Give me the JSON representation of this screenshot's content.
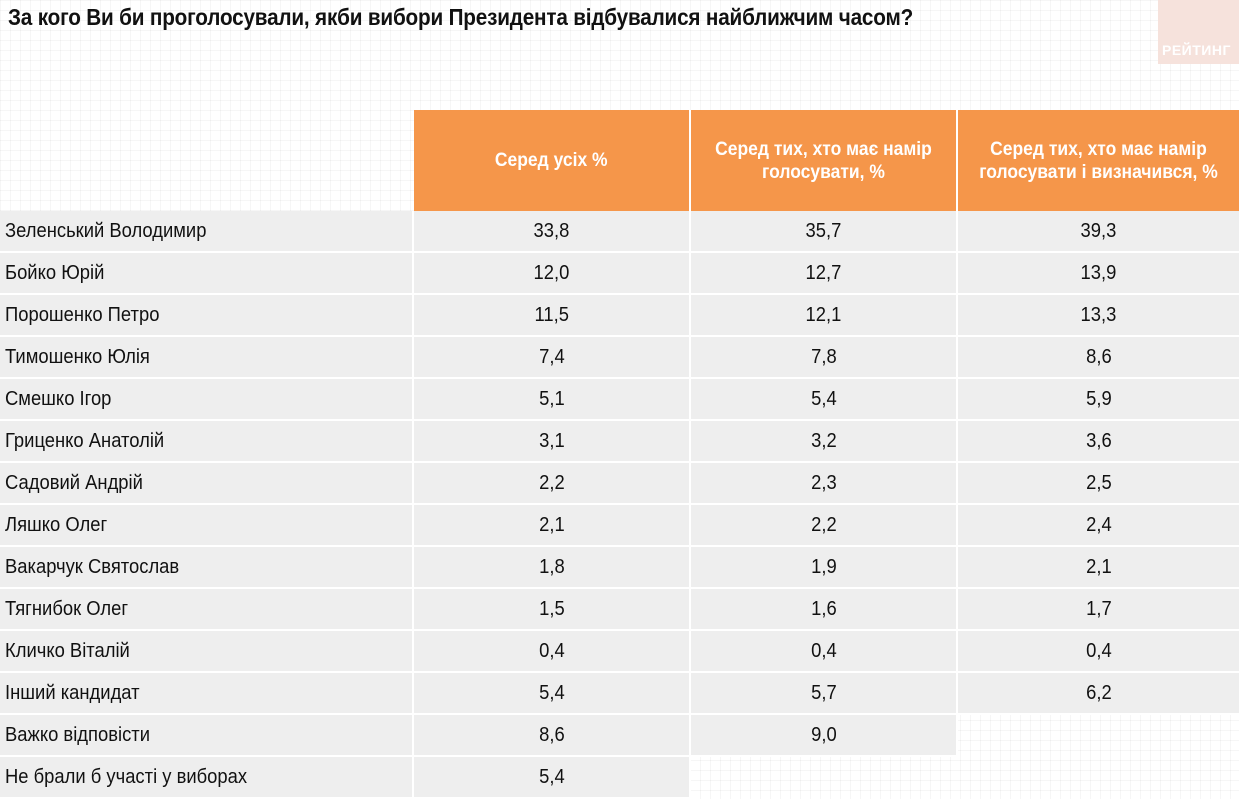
{
  "title": "За кого Ви би проголосували, якби вибори Президента відбувалися найближчим часом?",
  "brand": {
    "label": "РЕЙТИНГ"
  },
  "colors": {
    "header_bg": "#f5964a",
    "row_bg": "#eeeeee"
  },
  "columns": [
    "Серед усіх %",
    "Серед тих, хто має намір голосувати, %",
    "Серед тих, хто має намір голосувати і визначився, %"
  ],
  "rows": [
    {
      "name": "Зеленський Володимир",
      "values": [
        "33,8",
        "35,7",
        "39,3"
      ]
    },
    {
      "name": "Бойко Юрій",
      "values": [
        "12,0",
        "12,7",
        "13,9"
      ]
    },
    {
      "name": "Порошенко Петро",
      "values": [
        "11,5",
        "12,1",
        "13,3"
      ]
    },
    {
      "name": "Тимошенко Юлія",
      "values": [
        "7,4",
        "7,8",
        "8,6"
      ]
    },
    {
      "name": "Смешко Ігор",
      "values": [
        "5,1",
        "5,4",
        "5,9"
      ]
    },
    {
      "name": "Гриценко Анатолій",
      "values": [
        "3,1",
        "3,2",
        "3,6"
      ]
    },
    {
      "name": "Садовий Андрій",
      "values": [
        "2,2",
        "2,3",
        "2,5"
      ]
    },
    {
      "name": "Ляшко Олег",
      "values": [
        "2,1",
        "2,2",
        "2,4"
      ]
    },
    {
      "name": "Вакарчук Святослав",
      "values": [
        "1,8",
        "1,9",
        "2,1"
      ]
    },
    {
      "name": "Тягнибок Олег",
      "values": [
        "1,5",
        "1,6",
        "1,7"
      ]
    },
    {
      "name": "Кличко Віталій",
      "values": [
        "0,4",
        "0,4",
        "0,4"
      ]
    },
    {
      "name": "Інший кандидат",
      "values": [
        "5,4",
        "5,7",
        "6,2"
      ]
    },
    {
      "name": "Важко відповісти",
      "values": [
        "8,6",
        "9,0"
      ]
    },
    {
      "name": "Не брали б участі у виборах",
      "values": [
        "5,4"
      ]
    }
  ]
}
